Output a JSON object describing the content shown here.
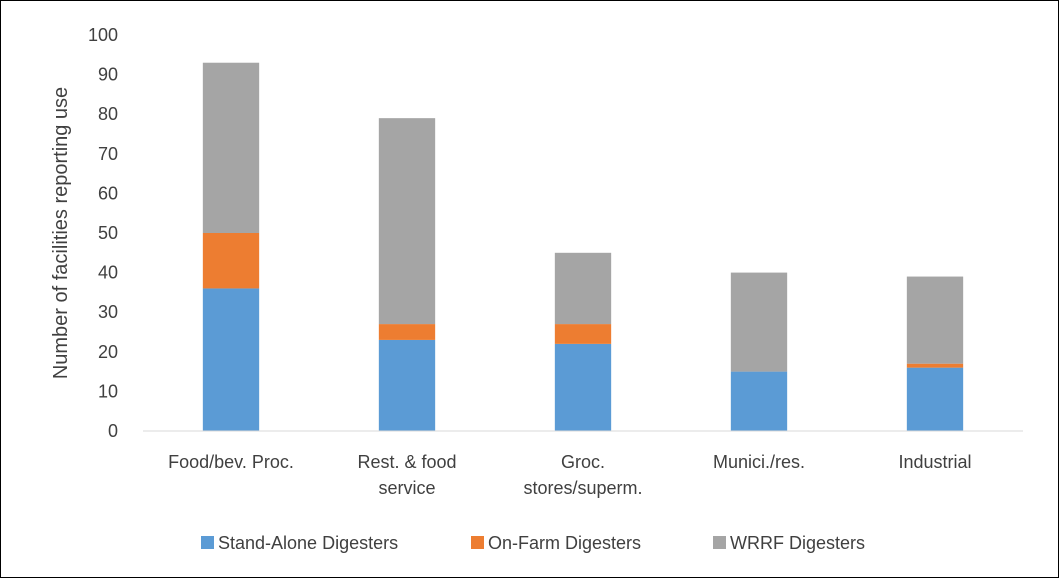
{
  "chart_data": {
    "type": "bar",
    "stacked": true,
    "title": "",
    "xlabel": "",
    "ylabel": "Number of facilities reporting use",
    "ylim": [
      0,
      100
    ],
    "yticks": [
      "0",
      "10",
      "20",
      "30",
      "40",
      "50",
      "60",
      "70",
      "80",
      "90",
      "100"
    ],
    "categories": [
      [
        "Food/bev. Proc."
      ],
      [
        "Rest. & food",
        "service"
      ],
      [
        "Groc.",
        "stores/superm."
      ],
      [
        "Munici./res."
      ],
      [
        "Industrial"
      ]
    ],
    "series": [
      {
        "name": "Stand-Alone Digesters",
        "color": "#5B9BD5",
        "values": [
          36,
          23,
          22,
          15,
          16
        ]
      },
      {
        "name": "On-Farm Digesters",
        "color": "#ED7D31",
        "values": [
          14,
          4,
          5,
          0,
          1
        ]
      },
      {
        "name": "WRRF Digesters",
        "color": "#A5A5A5",
        "values": [
          43,
          52,
          18,
          25,
          22
        ]
      }
    ],
    "grid": false,
    "legend_position": "bottom"
  }
}
